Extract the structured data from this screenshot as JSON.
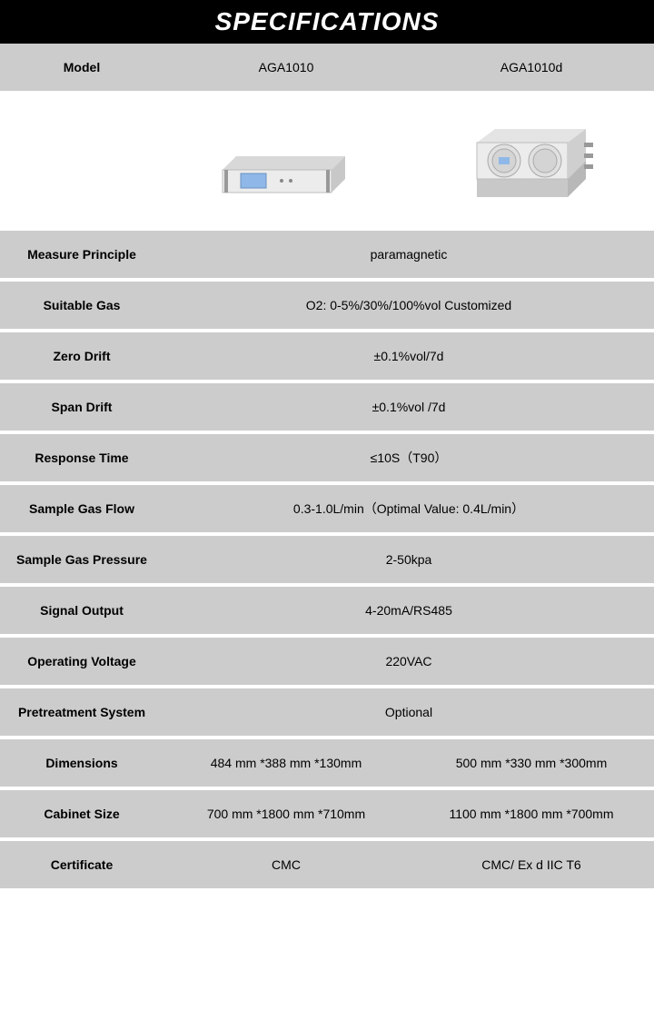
{
  "header": "SPECIFICATIONS",
  "model_row": {
    "label": "Model",
    "col1": "AGA1010",
    "col2": "AGA1010d"
  },
  "rows": [
    {
      "label": "Measure Principle",
      "span": "paramagnetic"
    },
    {
      "label": "Suitable Gas",
      "span": "O2: 0-5%/30%/100%vol Customized"
    },
    {
      "label": "Zero Drift",
      "span": "±0.1%vol/7d"
    },
    {
      "label": "Span Drift",
      "span": "±0.1%vol /7d"
    },
    {
      "label": "Response Time",
      "span": "≤10S（T90）"
    },
    {
      "label": "Sample Gas Flow",
      "span": "0.3-1.0L/min（Optimal Value: 0.4L/min）"
    },
    {
      "label": "Sample Gas Pressure",
      "span": "2-50kpa"
    },
    {
      "label": "Signal Output",
      "span": "4-20mA/RS485"
    },
    {
      "label": "Operating Voltage",
      "span": "220VAC"
    },
    {
      "label": "Pretreatment System",
      "span": "Optional"
    },
    {
      "label": "Dimensions",
      "col1": "484 mm *388 mm *130mm",
      "col2": "500 mm *330 mm *300mm"
    },
    {
      "label": "Cabinet Size",
      "col1": "700 mm *1800 mm *710mm",
      "col2": "1100 mm *1800 mm *700mm"
    },
    {
      "label": "Certificate",
      "col1": "CMC",
      "col2": "CMC/ Ex d IIC T6"
    }
  ],
  "colors": {
    "header_bg": "#000000",
    "header_fg": "#ffffff",
    "row_alt_bg": "#cccccc",
    "row_white_bg": "#ffffff",
    "device_body": "#e8e8e8",
    "device_shadow": "#bfbfbf",
    "device_screen": "#8fb8e8"
  }
}
